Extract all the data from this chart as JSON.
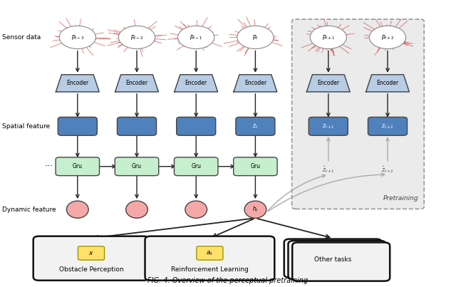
{
  "title": "FIG. 4. Overview of the perceptual pretraining",
  "bg_color": "#ffffff",
  "encoder_color": "#b8cce4",
  "spatial_color": "#4f81bd",
  "gru_color": "#c6efce",
  "dynamic_color": "#f4a9a8",
  "task_box_color": "#f2f2f2",
  "yellow_box_color": "#ffe06b",
  "pretraining_bg": "#ebebeb",
  "arrow_color": "#222222",
  "gray_arrow_color": "#aaaaaa",
  "columns": [
    0.17,
    0.3,
    0.43,
    0.56,
    0.72,
    0.85
  ],
  "row_sensor": 0.87,
  "row_encoder": 0.71,
  "row_spatial": 0.56,
  "row_gru": 0.42,
  "row_dynamic": 0.27,
  "row_task": 0.1,
  "sensor_labels_raw": [
    "t-3",
    "t-2",
    "t-1",
    "t",
    "t+1",
    "t+2"
  ],
  "sp_label_map": {
    "3": "z_t",
    "4": "z_{t+1}",
    "5": "z_{t+2}"
  },
  "dyn_label": "h_t",
  "zhat_labels": [
    "\\hat{z}_{t+1}",
    "\\hat{z}_{t+2}"
  ],
  "task_labels": [
    "Obstacle Perception",
    "Reinforcement Learning",
    "Other tasks"
  ],
  "task_inner_labels": [
    "x",
    "a_t"
  ],
  "left_labels": [
    "Sensor data",
    "Spatial feature",
    "Dynamic feature"
  ],
  "caption": "FIG. 4. Overview of the perceptual pretraining"
}
